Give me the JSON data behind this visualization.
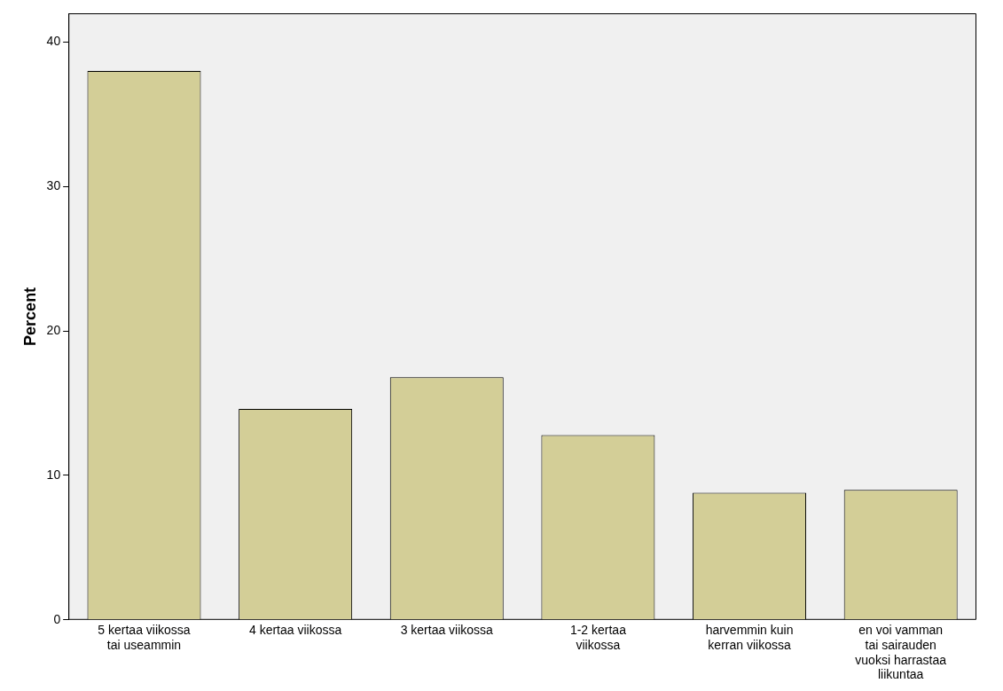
{
  "chart_data": {
    "type": "bar",
    "ylabel": "Percent",
    "categories": [
      "5 kertaa viikossa\ntai useammin",
      "4 kertaa viikossa",
      "3 kertaa viikossa",
      "1-2 kertaa\nviikossa",
      "harvemmin kuin\nkerran viikossa",
      "en voi vamman\ntai sairauden\nvuoksi harrastaa\nliikuntaa"
    ],
    "values": [
      38.0,
      14.6,
      16.8,
      12.8,
      8.8,
      9.0
    ],
    "color": "#d3ce97",
    "ylim": [
      0,
      42
    ],
    "yticks": [
      0,
      10,
      20,
      30,
      40
    ],
    "grid": false,
    "legend": false
  }
}
